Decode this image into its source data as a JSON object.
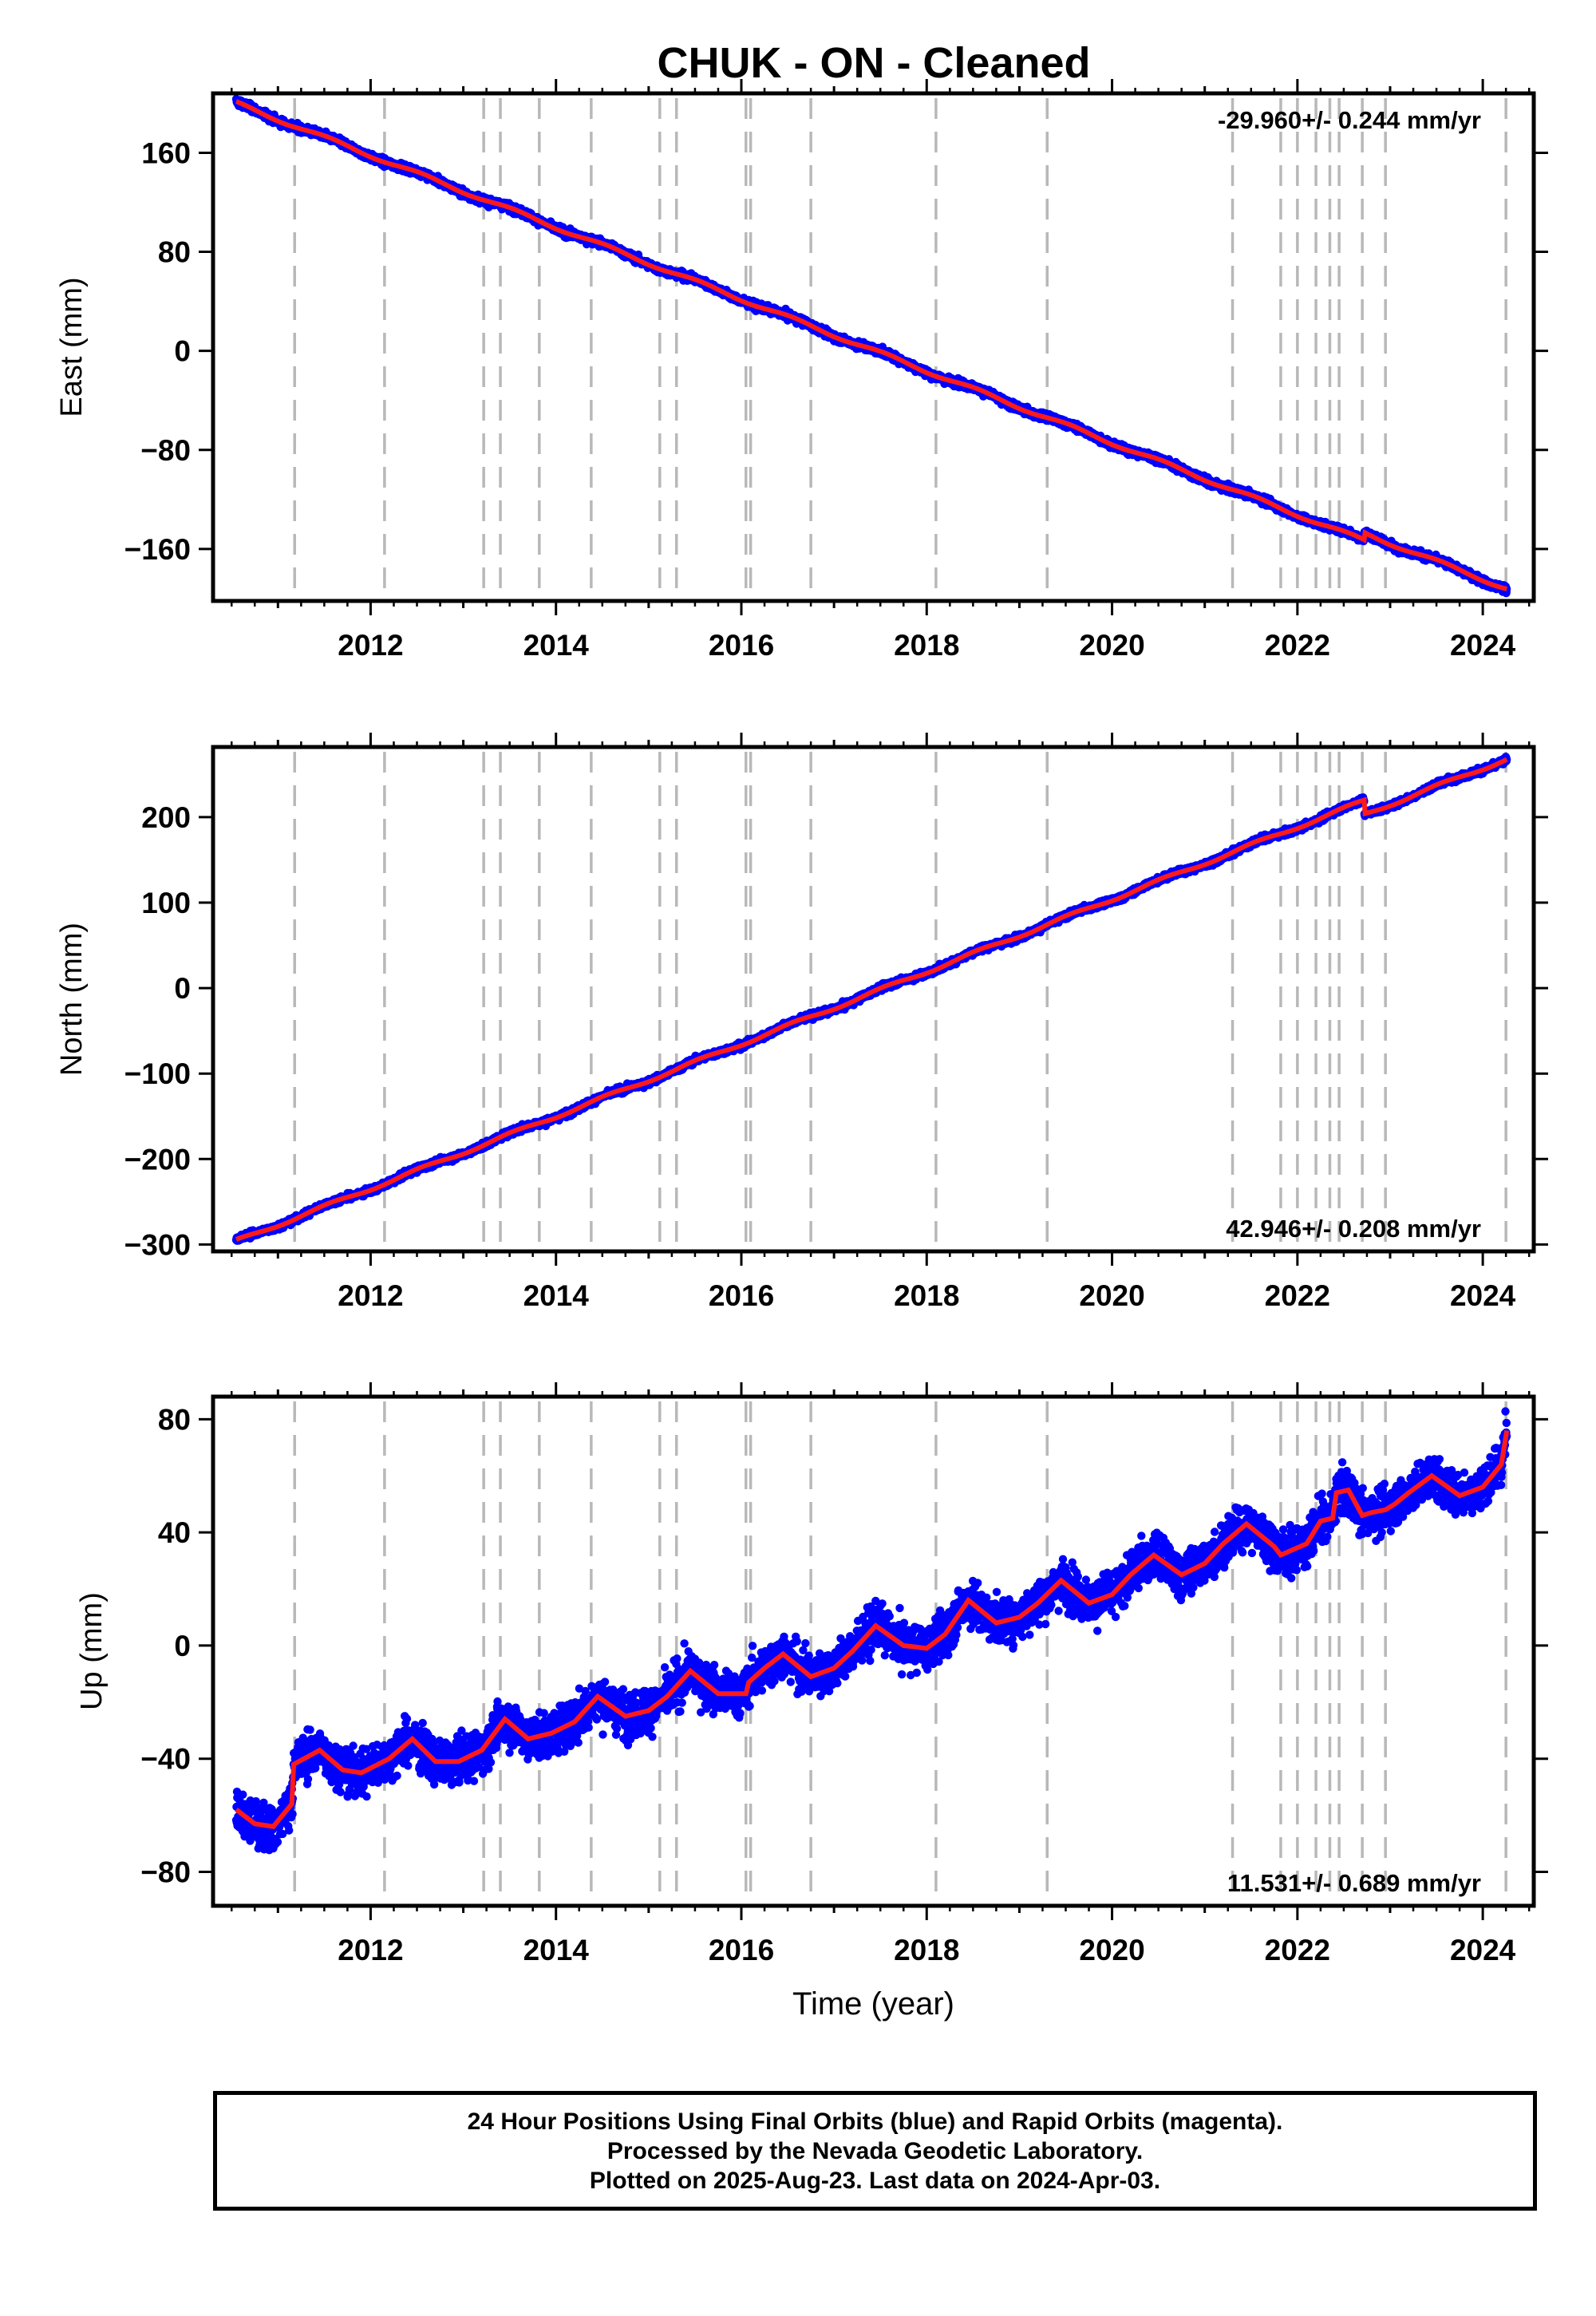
{
  "title": "CHUK  - ON - Cleaned",
  "footer": {
    "line1": "24 Hour Positions Using Final Orbits (blue) and Rapid Orbits (magenta).",
    "line2": "Processed by the Nevada Geodetic Laboratory.",
    "line3": "Plotted on 2025-Aug-23. Last data on 2024-Apr-03."
  },
  "colors": {
    "data_points": "#0000ff",
    "model_line": "#ff1a1a",
    "event_lines": "#b8b8b8",
    "frame": "#000000"
  },
  "chart_data": [
    {
      "type": "scatter",
      "component": "east",
      "ylabel": "East (mm)",
      "xlabel": "",
      "rate_text": "-29.960+/- 0.244 mm/yr",
      "rate_position": "top-right",
      "xlim": [
        2010.3,
        2024.55
      ],
      "ylim": [
        -202,
        208
      ],
      "yticks": [
        160,
        80,
        0,
        -80,
        -160
      ],
      "ytick_labels": [
        "160",
        "80",
        "0",
        "−80",
        "−160"
      ],
      "xticks": [
        2012,
        2014,
        2016,
        2018,
        2020,
        2022,
        2024
      ],
      "xtick_labels": [
        "2012",
        "2014",
        "2016",
        "2018",
        "2020",
        "2022",
        "2024"
      ],
      "start": [
        2010.55,
        200
      ],
      "end": [
        2024.26,
        -192
      ],
      "offsets": [
        [
          2022.65,
          0
        ],
        [
          2022.72,
          6
        ]
      ],
      "annual_amplitude": 1.5,
      "noise": 2.5
    },
    {
      "type": "scatter",
      "component": "north",
      "ylabel": "North (mm)",
      "xlabel": "",
      "rate_text": "42.946+/- 0.208 mm/yr",
      "rate_position": "bottom-right",
      "xlim": [
        2010.3,
        2024.55
      ],
      "ylim": [
        -308,
        282
      ],
      "yticks": [
        200,
        100,
        0,
        -100,
        -200,
        -300
      ],
      "ytick_labels": [
        "200",
        "100",
        "0",
        "−100",
        "−200",
        "−300"
      ],
      "xticks": [
        2012,
        2014,
        2016,
        2018,
        2020,
        2022,
        2024
      ],
      "xtick_labels": [
        "2012",
        "2014",
        "2016",
        "2018",
        "2020",
        "2022",
        "2024"
      ],
      "start": [
        2010.55,
        -296
      ],
      "end": [
        2024.26,
        268
      ],
      "offsets": [
        [
          2022.72,
          -16
        ]
      ],
      "annual_amplitude": 2,
      "noise": 3
    },
    {
      "type": "scatter",
      "component": "up",
      "ylabel": "Up (mm)",
      "xlabel": "Time (year)",
      "rate_text": "11.531+/- 0.689 mm/yr",
      "rate_position": "bottom-right",
      "xlim": [
        2010.3,
        2024.55
      ],
      "ylim": [
        -92,
        88
      ],
      "yticks": [
        80,
        40,
        0,
        -40,
        -80
      ],
      "ytick_labels": [
        "80",
        "40",
        "0",
        "−40",
        "−80"
      ],
      "xticks": [
        2012,
        2014,
        2016,
        2018,
        2020,
        2022,
        2024
      ],
      "xtick_labels": [
        "2012",
        "2014",
        "2016",
        "2018",
        "2020",
        "2022",
        "2024"
      ],
      "model_points": [
        [
          2010.55,
          -58
        ],
        [
          2010.75,
          -63
        ],
        [
          2010.95,
          -64
        ],
        [
          2011.15,
          -56
        ],
        [
          2011.17,
          -42
        ],
        [
          2011.45,
          -37
        ],
        [
          2011.7,
          -44
        ],
        [
          2011.9,
          -45
        ],
        [
          2012.2,
          -40
        ],
        [
          2012.45,
          -33
        ],
        [
          2012.7,
          -41
        ],
        [
          2012.95,
          -41
        ],
        [
          2013.2,
          -37
        ],
        [
          2013.45,
          -26
        ],
        [
          2013.7,
          -33
        ],
        [
          2013.95,
          -31
        ],
        [
          2014.2,
          -27
        ],
        [
          2014.45,
          -18
        ],
        [
          2014.75,
          -25
        ],
        [
          2015.0,
          -23
        ],
        [
          2015.2,
          -18
        ],
        [
          2015.45,
          -9
        ],
        [
          2015.75,
          -17
        ],
        [
          2016.05,
          -17
        ],
        [
          2016.08,
          -13
        ],
        [
          2016.25,
          -8
        ],
        [
          2016.45,
          -3
        ],
        [
          2016.75,
          -11
        ],
        [
          2017.0,
          -8
        ],
        [
          2017.2,
          -2
        ],
        [
          2017.45,
          7
        ],
        [
          2017.75,
          0
        ],
        [
          2018.0,
          -1
        ],
        [
          2018.2,
          4
        ],
        [
          2018.45,
          16
        ],
        [
          2018.75,
          8
        ],
        [
          2019.0,
          10
        ],
        [
          2019.2,
          15
        ],
        [
          2019.45,
          23
        ],
        [
          2019.75,
          15
        ],
        [
          2020.0,
          18
        ],
        [
          2020.2,
          25
        ],
        [
          2020.45,
          32
        ],
        [
          2020.75,
          25
        ],
        [
          2021.0,
          29
        ],
        [
          2021.2,
          36
        ],
        [
          2021.45,
          43
        ],
        [
          2021.75,
          35
        ],
        [
          2021.82,
          32
        ],
        [
          2022.1,
          36
        ],
        [
          2022.25,
          44
        ],
        [
          2022.38,
          45
        ],
        [
          2022.42,
          54
        ],
        [
          2022.55,
          55
        ],
        [
          2022.7,
          46
        ],
        [
          2022.8,
          47
        ],
        [
          2022.95,
          48
        ],
        [
          2023.05,
          50
        ],
        [
          2023.2,
          54
        ],
        [
          2023.45,
          60
        ],
        [
          2023.75,
          53
        ],
        [
          2024.0,
          56
        ],
        [
          2024.2,
          64
        ],
        [
          2024.26,
          76
        ]
      ],
      "annual_amplitude": 0,
      "noise": 6.5
    }
  ],
  "event_lines": [
    2011.18,
    2012.15,
    2013.22,
    2013.4,
    2013.82,
    2014.38,
    2015.12,
    2015.3,
    2016.05,
    2016.1,
    2016.75,
    2018.1,
    2019.3,
    2021.3,
    2021.82,
    2022.0,
    2022.2,
    2022.35,
    2022.45,
    2022.7,
    2022.95,
    2024.25
  ]
}
